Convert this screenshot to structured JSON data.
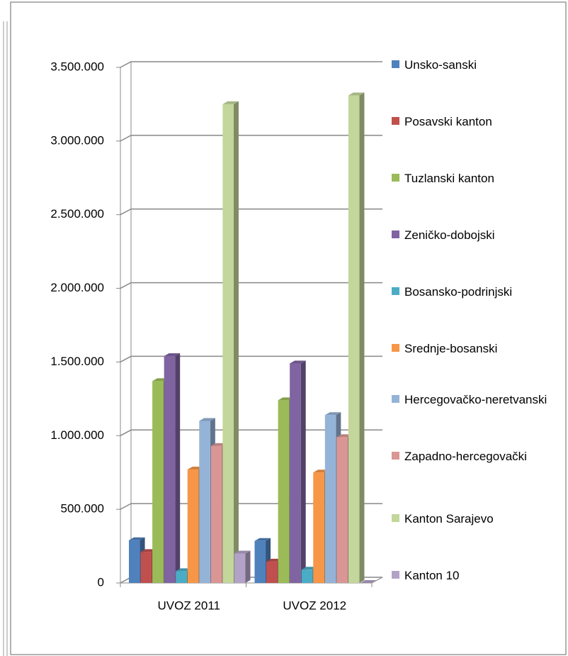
{
  "chart_data": {
    "type": "bar3d",
    "categories": [
      "UVOZ 2011",
      "UVOZ  2012"
    ],
    "series": [
      {
        "name": "Unsko-sanski",
        "color": "#4f81bd",
        "values": [
          290000,
          285000
        ]
      },
      {
        "name": "Posavski kanton",
        "color": "#c0504d",
        "values": [
          210000,
          145000
        ]
      },
      {
        "name": "Tuzlanski kanton",
        "color": "#9bbb59",
        "values": [
          1370000,
          1240000
        ]
      },
      {
        "name": "Zeničko-dobojski",
        "color": "#8064a2",
        "values": [
          1540000,
          1490000
        ]
      },
      {
        "name": "Bosansko-podrinjski",
        "color": "#4bacc6",
        "values": [
          80000,
          90000
        ]
      },
      {
        "name": "Srednje-bosanski",
        "color": "#f79646",
        "values": [
          770000,
          750000
        ]
      },
      {
        "name": "Hercegovačko-neretvanski",
        "color": "#95b3d7",
        "values": [
          1100000,
          1140000
        ]
      },
      {
        "name": "Zapadno-hercegovački",
        "color": "#d99694",
        "values": [
          930000,
          990000
        ]
      },
      {
        "name": "Kanton Sarajevo",
        "color": "#c3d69b",
        "values": [
          3250000,
          3310000
        ]
      },
      {
        "name": "Kanton 10",
        "color": "#b3a2c7",
        "values": [
          200000,
          0
        ]
      }
    ],
    "ylim": [
      0,
      3500000
    ],
    "yticks": [
      0,
      {
        "value": 500000,
        "label": "500.000"
      },
      {
        "value": 1000000,
        "label": "1.000.000"
      },
      {
        "value": 1500000,
        "label": "1.500.000"
      },
      {
        "value": 2000000,
        "label": "2.000.000"
      },
      {
        "value": 2500000,
        "label": "2.500.000"
      },
      {
        "value": 3000000,
        "label": "3.000.000"
      },
      {
        "value": 3500000,
        "label": "3.500.000"
      }
    ],
    "grid": true,
    "legend": "right"
  }
}
